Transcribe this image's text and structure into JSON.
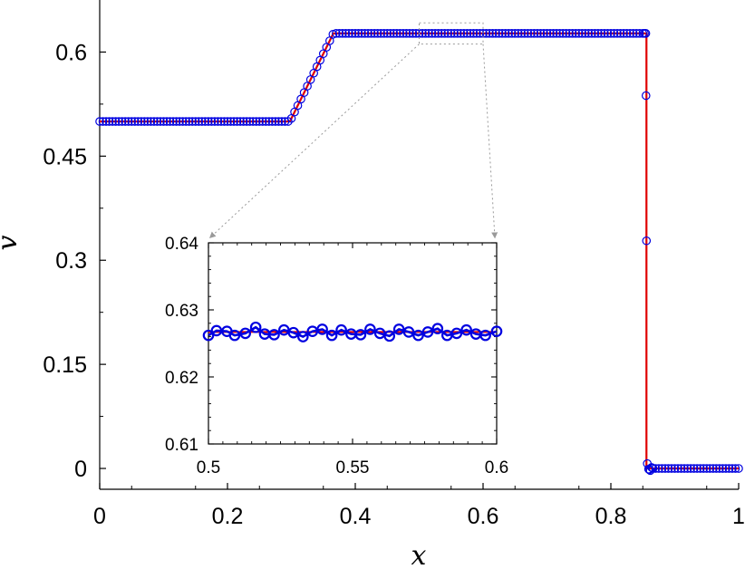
{
  "chart_data": {
    "type": "line",
    "title": "",
    "xlabel": "x",
    "ylabel": "v",
    "xlim": [
      0,
      1
    ],
    "ylim": [
      -0.03,
      0.675
    ],
    "x_ticks": [
      "0",
      "0.2",
      "0.4",
      "0.6",
      "0.8",
      "1"
    ],
    "y_ticks": [
      "0",
      "0.15",
      "0.3",
      "0.45",
      "0.6"
    ],
    "grid": false,
    "series": [
      {
        "style": "solid line",
        "color": "#e00000",
        "x": [
          0,
          0.2977,
          0.3657,
          0.8557,
          0.8557,
          1.0
        ],
        "y": [
          0.5,
          0.5,
          0.6269,
          0.6269,
          0.0,
          0.0
        ]
      },
      {
        "style": "open circle markers",
        "color": "#0000e0",
        "marker_spacing": 0.005,
        "x": [
          0,
          0.2977,
          0.3657,
          0.8527,
          0.8547,
          0.8557,
          0.857,
          0.859,
          0.8617,
          0.8637,
          0.866,
          1.0
        ],
        "y": [
          0.5,
          0.5,
          0.6269,
          0.6269,
          0.6269,
          0.328,
          0.007,
          -0.001,
          -0.003,
          0.0015,
          0.0,
          0.0
        ]
      }
    ],
    "inset": {
      "xlim": [
        0.5,
        0.6
      ],
      "ylim": [
        0.61,
        0.64
      ],
      "x_ticks": [
        "0.5",
        "0.55",
        "0.6"
      ],
      "y_ticks": [
        "0.61",
        "0.62",
        "0.63",
        "0.64"
      ],
      "series": [
        {
          "style": "solid line",
          "color": "#e00000",
          "x": [
            0.5,
            0.6
          ],
          "y": [
            0.6267,
            0.6267
          ]
        },
        {
          "style": "open circle markers with thick line",
          "color": "#0000e0",
          "x": [
            0.5,
            0.5028,
            0.5064,
            0.5091,
            0.5128,
            0.5164,
            0.5195,
            0.5228,
            0.5262,
            0.5295,
            0.5328,
            0.5361,
            0.5395,
            0.5428,
            0.5461,
            0.5495,
            0.5528,
            0.5561,
            0.5595,
            0.5628,
            0.5661,
            0.5695,
            0.5728,
            0.5761,
            0.5795,
            0.5828,
            0.5861,
            0.5895,
            0.5928,
            0.5961,
            0.6
          ],
          "y": [
            0.6262,
            0.6269,
            0.6268,
            0.6262,
            0.6265,
            0.6274,
            0.6264,
            0.6263,
            0.627,
            0.6266,
            0.626,
            0.6268,
            0.6271,
            0.6262,
            0.627,
            0.6264,
            0.6263,
            0.6271,
            0.6265,
            0.6261,
            0.6271,
            0.6267,
            0.6262,
            0.6267,
            0.6272,
            0.6262,
            0.6265,
            0.627,
            0.6264,
            0.6262,
            0.6268
          ]
        }
      ]
    }
  }
}
